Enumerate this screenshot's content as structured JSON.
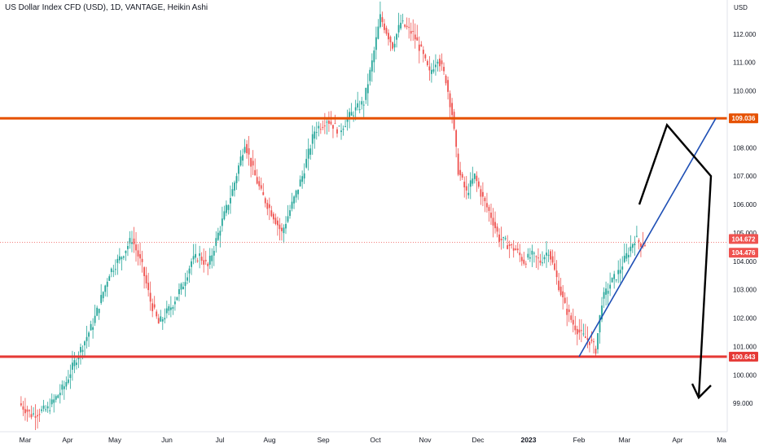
{
  "title": "US Dollar Index CFD (USD), 1D, VANTAGE, Heikin Ashi",
  "currency": "USD",
  "chart_data": {
    "type": "candlestick",
    "style": "heikin-ashi",
    "ylim": [
      98.0,
      113.2
    ],
    "y_ticks": [
      "99.000",
      "100.000",
      "101.000",
      "102.000",
      "103.000",
      "104.000",
      "105.000",
      "106.000",
      "107.000",
      "108.000",
      "110.000",
      "111.000",
      "112.000"
    ],
    "x_ticks": [
      "Mar",
      "Apr",
      "May",
      "Jun",
      "Jul",
      "Aug",
      "Sep",
      "Oct",
      "Nov",
      "Dec",
      "2023",
      "Feb",
      "Mar",
      "Apr",
      "Ma"
    ],
    "price_labels": [
      {
        "value": 109.036,
        "text": "109.036",
        "color": "#e65100"
      },
      {
        "value": 104.672,
        "text": "104.672",
        "color": "#ef5350"
      },
      {
        "value": 104.476,
        "text": "104.476",
        "color": "#ef5350"
      },
      {
        "value": 100.643,
        "text": "100.643",
        "color": "#e53935"
      }
    ],
    "current_price": 104.672,
    "horizontal_levels": [
      {
        "value": 109.036,
        "color": "#e65100"
      },
      {
        "value": 100.643,
        "color": "#e53935"
      }
    ],
    "up_color": "#26a69a",
    "down_color": "#ef5350",
    "trend_line": {
      "from": [
        "Feb",
        100.643
      ],
      "to": [
        "Apr",
        109.036
      ],
      "color": "#1e4fb5"
    },
    "projection_path": [
      [
        106.0
      ],
      [
        108.8
      ],
      [
        107.0
      ],
      [
        99.2
      ]
    ],
    "waypoints": [
      [
        0,
        99.0
      ],
      [
        6,
        98.6
      ],
      [
        14,
        98.8
      ],
      [
        22,
        99.6
      ],
      [
        28,
        100.6
      ],
      [
        36,
        101.8
      ],
      [
        44,
        103.6
      ],
      [
        50,
        104.2
      ],
      [
        55,
        104.8
      ],
      [
        60,
        103.8
      ],
      [
        64,
        102.6
      ],
      [
        68,
        101.8
      ],
      [
        74,
        102.4
      ],
      [
        80,
        103.2
      ],
      [
        84,
        104.0
      ],
      [
        88,
        104.2
      ],
      [
        92,
        103.8
      ],
      [
        98,
        105.2
      ],
      [
        104,
        106.5
      ],
      [
        110,
        108.2
      ],
      [
        114,
        107.2
      ],
      [
        118,
        106.4
      ],
      [
        124,
        105.6
      ],
      [
        128,
        105.0
      ],
      [
        133,
        106.0
      ],
      [
        138,
        107.0
      ],
      [
        144,
        108.6
      ],
      [
        150,
        109.0
      ],
      [
        156,
        108.6
      ],
      [
        162,
        109.2
      ],
      [
        168,
        109.6
      ],
      [
        172,
        111.0
      ],
      [
        176,
        112.6
      ],
      [
        182,
        111.6
      ],
      [
        186,
        112.4
      ],
      [
        192,
        112.0
      ],
      [
        196,
        111.4
      ],
      [
        200,
        110.6
      ],
      [
        204,
        111.2
      ],
      [
        208,
        110.4
      ],
      [
        211,
        109.2
      ],
      [
        214,
        107.2
      ],
      [
        218,
        106.4
      ],
      [
        222,
        107.0
      ],
      [
        226,
        106.2
      ],
      [
        230,
        105.6
      ],
      [
        234,
        104.8
      ],
      [
        238,
        104.6
      ],
      [
        242,
        104.4
      ],
      [
        246,
        104.0
      ],
      [
        250,
        104.2
      ],
      [
        254,
        104.0
      ],
      [
        258,
        104.4
      ],
      [
        262,
        103.4
      ],
      [
        266,
        102.4
      ],
      [
        270,
        101.8
      ],
      [
        274,
        101.4
      ],
      [
        278,
        101.2
      ],
      [
        281,
        100.9
      ],
      [
        284,
        102.6
      ],
      [
        288,
        103.2
      ],
      [
        292,
        103.6
      ],
      [
        296,
        104.2
      ],
      [
        300,
        104.8
      ],
      [
        304,
        104.6
      ]
    ]
  }
}
